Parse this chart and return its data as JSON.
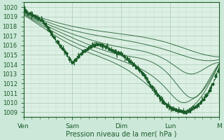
{
  "xlabel": "Pression niveau de la mer( hPa )",
  "bg_color": "#cce8d8",
  "plot_bg_color": "#ddf0e4",
  "grid_major_color": "#a8ccb4",
  "grid_minor_color": "#c0dcc8",
  "line_color": "#1a5c2a",
  "ylim": [
    1008.5,
    1020.5
  ],
  "yticks": [
    1009,
    1010,
    1011,
    1012,
    1013,
    1014,
    1015,
    1016,
    1017,
    1018,
    1019,
    1020
  ],
  "day_labels": [
    "Ven",
    "Sam",
    "Dim",
    "Lun",
    "M"
  ],
  "day_positions": [
    0,
    48,
    96,
    144,
    192
  ],
  "total_points": 192
}
